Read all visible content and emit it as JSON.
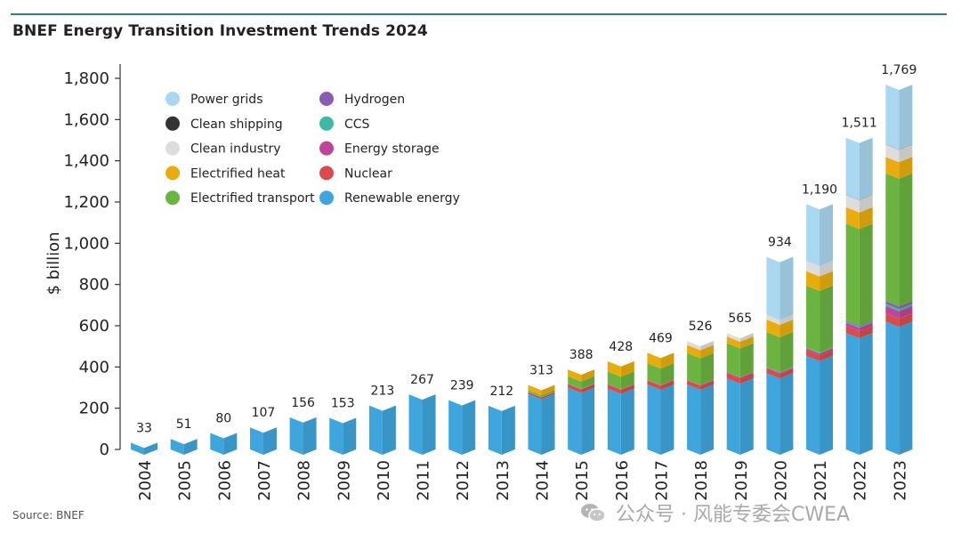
{
  "title": "BNEF Energy Transition Investment Trends 2024",
  "source": "Source: BNEF",
  "watermark": "公众号 · 风能专委会CWEA",
  "colors": {
    "accent_line": "#2f7f88"
  },
  "chart_data": {
    "type": "bar",
    "stacked": true,
    "title": "BNEF Energy Transition Investment Trends 2024",
    "ylabel": "$ billion",
    "xlabel": "",
    "ylim": [
      0,
      1800
    ],
    "yticks": [
      0,
      200,
      400,
      600,
      800,
      "1,000",
      "1,200",
      "1,400",
      "1,600",
      "1,800"
    ],
    "ytick_values": [
      0,
      200,
      400,
      600,
      800,
      1000,
      1200,
      1400,
      1600,
      1800
    ],
    "legend_position": "top-left",
    "categories": [
      "2004",
      "2005",
      "2006",
      "2007",
      "2008",
      "2009",
      "2010",
      "2011",
      "2012",
      "2013",
      "2014",
      "2015",
      "2016",
      "2017",
      "2018",
      "2019",
      "2020",
      "2021",
      "2022",
      "2023"
    ],
    "totals": [
      "33",
      "51",
      "80",
      "107",
      "156",
      "153",
      "213",
      "267",
      "239",
      "212",
      "313",
      "388",
      "428",
      "469",
      "526",
      "565",
      "934",
      "1,190",
      "1,511",
      "1,769"
    ],
    "series": [
      {
        "name": "Renewable energy",
        "color": "#3ea6dc",
        "values": [
          33,
          51,
          80,
          107,
          156,
          153,
          213,
          267,
          239,
          212,
          270,
          300,
          295,
          315,
          315,
          345,
          370,
          455,
          565,
          620
        ]
      },
      {
        "name": "Nuclear",
        "color": "#d94c4c",
        "values": [
          0,
          0,
          0,
          0,
          0,
          0,
          0,
          0,
          0,
          0,
          8,
          18,
          20,
          20,
          20,
          26,
          22,
          28,
          35,
          40
        ]
      },
      {
        "name": "Energy storage",
        "color": "#c0449c",
        "values": [
          0,
          0,
          0,
          0,
          0,
          0,
          0,
          0,
          0,
          0,
          1,
          1,
          2,
          2,
          2,
          4,
          5,
          8,
          15,
          36
        ]
      },
      {
        "name": "CCS",
        "color": "#3fb8a6",
        "values": [
          0,
          0,
          0,
          0,
          0,
          0,
          0,
          0,
          0,
          0,
          1,
          1,
          1,
          1,
          1,
          1,
          2,
          3,
          6,
          11
        ]
      },
      {
        "name": "Hydrogen",
        "color": "#8c5bb5",
        "values": [
          0,
          0,
          0,
          0,
          0,
          0,
          0,
          0,
          0,
          0,
          0,
          0,
          0,
          0,
          0,
          0,
          1,
          1,
          4,
          12
        ]
      },
      {
        "name": "Electrified transport",
        "color": "#6bb43f",
        "values": [
          0,
          0,
          0,
          0,
          0,
          0,
          0,
          0,
          0,
          0,
          8,
          35,
          60,
          80,
          130,
          140,
          170,
          300,
          470,
          620
        ]
      },
      {
        "name": "Electrified heat",
        "color": "#e8ad0c",
        "values": [
          0,
          0,
          0,
          0,
          0,
          0,
          0,
          0,
          0,
          0,
          25,
          33,
          50,
          51,
          39,
          32,
          60,
          70,
          80,
          80
        ]
      },
      {
        "name": "Clean industry",
        "color": "#dddddd",
        "values": [
          0,
          0,
          0,
          0,
          0,
          0,
          0,
          0,
          0,
          0,
          0,
          0,
          0,
          0,
          19,
          17,
          24,
          50,
          60,
          60
        ]
      },
      {
        "name": "Clean shipping",
        "color": "#333333",
        "values": [
          0,
          0,
          0,
          0,
          0,
          0,
          0,
          0,
          0,
          0,
          0,
          0,
          0,
          0,
          0,
          0,
          0,
          0,
          1,
          1
        ]
      },
      {
        "name": "Power grids",
        "color": "#a9d8f0",
        "values": [
          0,
          0,
          0,
          0,
          0,
          0,
          0,
          0,
          0,
          0,
          0,
          0,
          0,
          0,
          0,
          0,
          280,
          275,
          276,
          289
        ]
      }
    ],
    "legend": [
      {
        "name": "Power grids",
        "color": "#a9d8f0"
      },
      {
        "name": "Clean shipping",
        "color": "#333333"
      },
      {
        "name": "Clean industry",
        "color": "#dddddd"
      },
      {
        "name": "Electrified heat",
        "color": "#e8ad0c"
      },
      {
        "name": "Electrified transport",
        "color": "#6bb43f"
      },
      {
        "name": "Hydrogen",
        "color": "#8c5bb5"
      },
      {
        "name": "CCS",
        "color": "#3fb8a6"
      },
      {
        "name": "Energy storage",
        "color": "#c0449c"
      },
      {
        "name": "Nuclear",
        "color": "#d94c4c"
      },
      {
        "name": "Renewable energy",
        "color": "#3ea6dc"
      }
    ]
  }
}
